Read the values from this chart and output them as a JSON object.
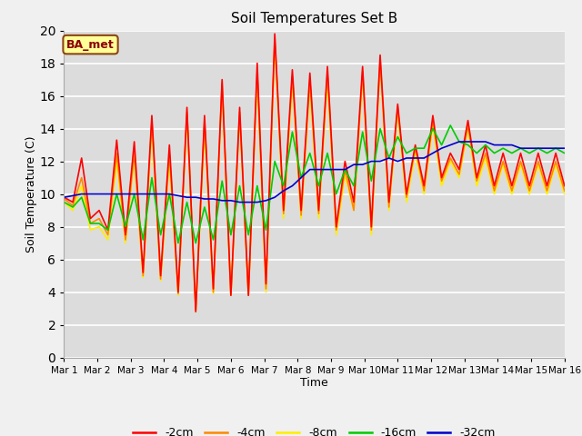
{
  "title": "Soil Temperatures Set B",
  "xlabel": "Time",
  "ylabel": "Soil Temperature (C)",
  "ylim": [
    0,
    20
  ],
  "yticks": [
    0,
    2,
    4,
    6,
    8,
    10,
    12,
    14,
    16,
    18,
    20
  ],
  "xtick_labels": [
    "Mar 1",
    "Mar 2",
    "Mar 3",
    "Mar 4",
    "Mar 5",
    "Mar 6",
    "Mar 7",
    "Mar 8",
    "Mar 9",
    "Mar 10",
    "Mar 11",
    "Mar 12",
    "Mar 13",
    "Mar 14",
    "Mar 15",
    "Mar 16"
  ],
  "bg_color": "#dcdcdc",
  "grid_color": "#ffffff",
  "fig_color": "#f0f0f0",
  "annotation_text": "BA_met",
  "annotation_color": "#8b0000",
  "annotation_bg": "#ffff99",
  "annotation_edge": "#8b4513",
  "series": {
    "2cm": {
      "color": "#ff0000",
      "label": "-2cm",
      "values": [
        9.8,
        9.5,
        12.2,
        8.5,
        9.0,
        7.8,
        13.3,
        7.5,
        13.2,
        5.2,
        14.8,
        5.0,
        13.0,
        4.0,
        15.3,
        2.8,
        14.8,
        4.2,
        17.0,
        3.8,
        15.3,
        3.8,
        18.0,
        4.5,
        19.8,
        9.0,
        17.6,
        9.0,
        17.4,
        9.0,
        17.8,
        8.0,
        12.0,
        9.5,
        17.8,
        8.0,
        18.5,
        9.5,
        15.5,
        10.0,
        13.0,
        10.5,
        14.8,
        11.0,
        12.5,
        11.5,
        14.5,
        11.0,
        13.0,
        10.5,
        12.5,
        10.5,
        12.5,
        10.5,
        12.5,
        10.5,
        12.5,
        10.5
      ]
    },
    "4cm": {
      "color": "#ff8800",
      "label": "-4cm",
      "values": [
        9.7,
        9.3,
        11.0,
        8.2,
        8.5,
        7.5,
        12.5,
        7.2,
        12.5,
        5.0,
        14.5,
        4.8,
        12.5,
        3.9,
        15.0,
        2.9,
        14.5,
        4.0,
        16.8,
        3.8,
        15.0,
        3.8,
        17.5,
        4.2,
        19.5,
        8.8,
        17.2,
        8.7,
        17.0,
        8.8,
        17.4,
        7.8,
        11.5,
        9.0,
        17.5,
        7.8,
        18.2,
        9.2,
        15.3,
        9.8,
        12.8,
        10.2,
        14.5,
        10.8,
        12.2,
        11.2,
        14.2,
        10.8,
        12.5,
        10.2,
        12.0,
        10.2,
        12.0,
        10.2,
        12.0,
        10.2,
        12.0,
        10.2
      ]
    },
    "8cm": {
      "color": "#ffee00",
      "label": "-8cm",
      "values": [
        9.5,
        9.0,
        10.5,
        7.8,
        8.0,
        7.2,
        12.0,
        7.0,
        12.2,
        4.9,
        14.0,
        4.7,
        12.0,
        3.8,
        14.8,
        2.8,
        14.0,
        3.9,
        16.5,
        3.8,
        14.8,
        3.8,
        17.2,
        4.0,
        19.2,
        8.5,
        16.8,
        8.5,
        16.5,
        8.5,
        17.0,
        7.5,
        11.2,
        9.0,
        17.2,
        7.5,
        18.0,
        9.0,
        15.0,
        9.5,
        12.5,
        10.0,
        14.2,
        10.5,
        12.0,
        11.0,
        14.0,
        10.5,
        12.2,
        10.0,
        11.8,
        10.0,
        11.8,
        10.0,
        11.8,
        10.0,
        11.8,
        10.0
      ]
    },
    "16cm": {
      "color": "#00cc00",
      "label": "-16cm",
      "values": [
        9.5,
        9.2,
        9.8,
        8.2,
        8.2,
        7.8,
        10.0,
        8.0,
        10.0,
        7.2,
        11.0,
        7.5,
        10.0,
        7.0,
        9.5,
        7.0,
        9.2,
        7.2,
        10.8,
        7.5,
        10.5,
        7.5,
        10.5,
        7.8,
        12.0,
        10.5,
        13.8,
        11.0,
        12.5,
        10.5,
        12.5,
        10.0,
        11.5,
        10.5,
        13.8,
        10.8,
        14.0,
        12.2,
        13.5,
        12.5,
        12.8,
        12.8,
        14.0,
        13.0,
        14.2,
        13.2,
        13.0,
        12.5,
        13.0,
        12.5,
        12.8,
        12.5,
        12.8,
        12.5,
        12.8,
        12.5,
        12.8,
        12.5
      ]
    },
    "32cm": {
      "color": "#0000cc",
      "label": "-32cm",
      "values": [
        9.8,
        9.9,
        10.0,
        10.0,
        10.0,
        10.0,
        10.0,
        10.0,
        10.0,
        10.0,
        10.0,
        10.0,
        10.0,
        9.9,
        9.8,
        9.8,
        9.7,
        9.7,
        9.6,
        9.6,
        9.5,
        9.5,
        9.5,
        9.6,
        9.8,
        10.2,
        10.5,
        11.0,
        11.5,
        11.5,
        11.5,
        11.5,
        11.5,
        11.8,
        11.8,
        12.0,
        12.0,
        12.2,
        12.0,
        12.2,
        12.2,
        12.2,
        12.5,
        12.8,
        13.0,
        13.2,
        13.2,
        13.2,
        13.2,
        13.0,
        13.0,
        13.0,
        12.8,
        12.8,
        12.8,
        12.8,
        12.8,
        12.8
      ]
    }
  },
  "series_order": [
    "8cm",
    "4cm",
    "2cm",
    "16cm",
    "32cm"
  ],
  "legend_order": [
    "2cm",
    "4cm",
    "8cm",
    "16cm",
    "32cm"
  ]
}
